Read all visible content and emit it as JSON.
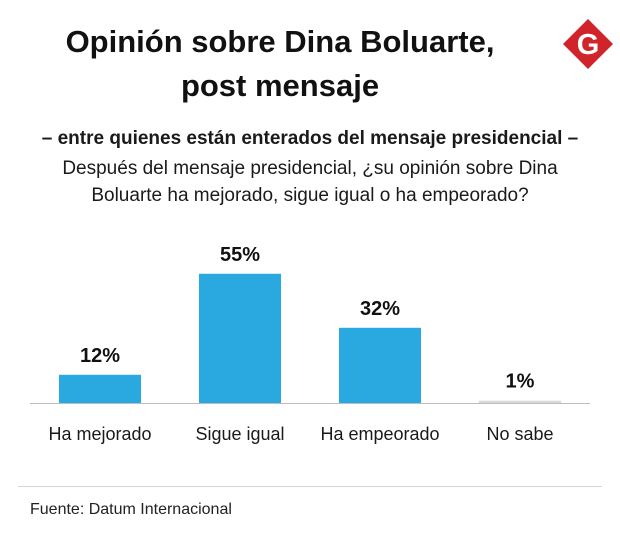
{
  "title": {
    "line1": "Opinión sobre Dina Boluarte,",
    "line2": "post mensaje"
  },
  "logo": {
    "letter": "G",
    "color": "#d0232a"
  },
  "subtitle": "– entre quienes están enterados del mensaje presidencial –",
  "question": {
    "line1": "Después del mensaje presidencial, ¿su opinión sobre Dina",
    "line2": "Boluarte ha mejorado, sigue igual o ha empeorado?"
  },
  "chart_data": {
    "type": "bar",
    "categories": [
      "Ha mejorado",
      "Sigue igual",
      "Ha empeorado",
      "No sabe"
    ],
    "values": [
      12,
      55,
      32,
      1
    ],
    "value_labels": [
      "12%",
      "55%",
      "32%",
      "1%"
    ],
    "unit": "%",
    "ylim": [
      0,
      60
    ],
    "grid": false,
    "bar_color": "#2aa9e0",
    "title": "Opinión sobre Dina Boluarte, post mensaje"
  },
  "source": "Fuente: Datum Internacional"
}
